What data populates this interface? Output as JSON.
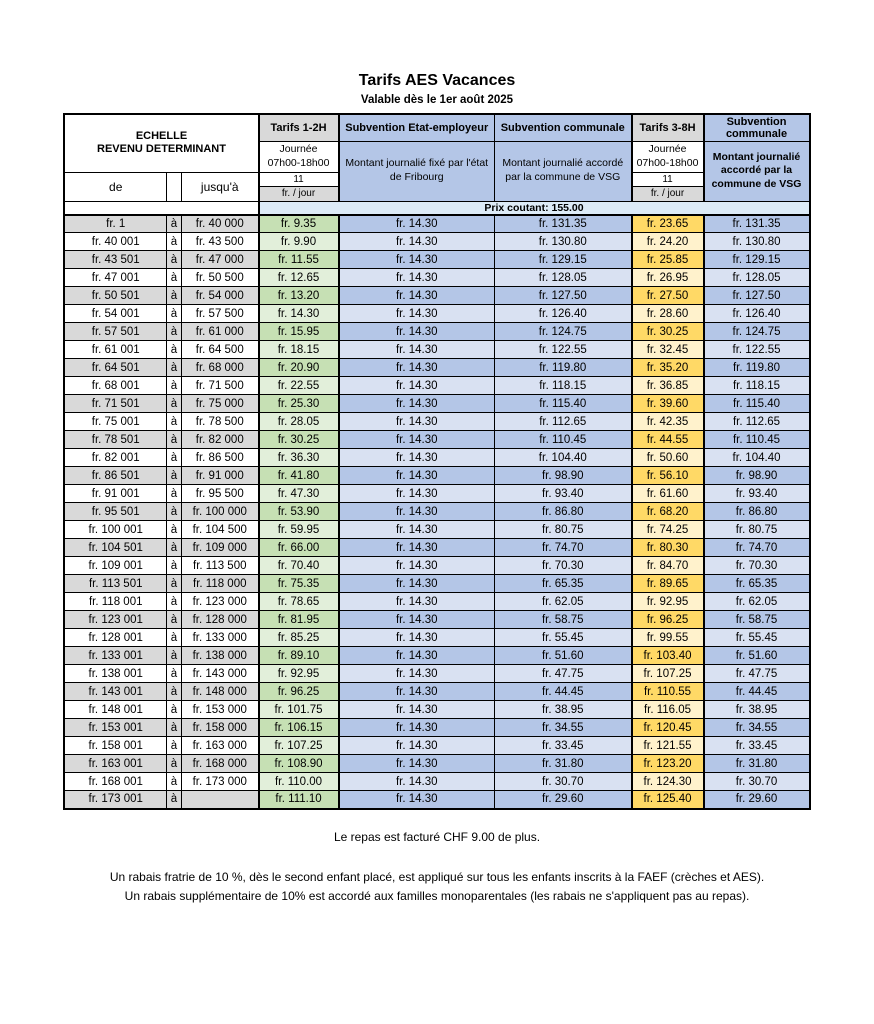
{
  "page": {
    "title": "Tarifs AES Vacances",
    "subtitle": "Valable dès le 1er août 2025"
  },
  "colors": {
    "header_blue": "#b4c6e7",
    "header_gray": "#d9d9d9",
    "prix_band_blue": "#ddebf7",
    "range_odd_gray": "#d9d9d9",
    "range_even_white": "#ffffff",
    "tarif12_odd_green": "#c6e0b4",
    "tarif12_even_green": "#e2efda",
    "subvention_odd_blue": "#b4c6e7",
    "subvention_even_blue": "#d9e1f2",
    "tarif38_odd_yellow": "#ffd966",
    "tarif38_even_yellow": "#fff2cc",
    "border_black": "#000000"
  },
  "table": {
    "header": {
      "echelle_line1": "ECHELLE",
      "echelle_line2": "REVENU DETERMINANT",
      "de": "de",
      "jusqua": "jusqu'à",
      "tarifs_1_2h": {
        "title": "Tarifs 1-2H",
        "journee_line1": "Journée",
        "journee_line2": "07h00-18h00",
        "hours": "11",
        "unit": "fr. / jour"
      },
      "subv_etat": {
        "title": "Subvention Etat-employeur",
        "desc": "Montant journalié fixé par l'état de Fribourg"
      },
      "subv_comm": {
        "title": "Subvention communale",
        "desc": "Montant journalié accordé par la commune de VSG"
      },
      "tarifs_3_8h": {
        "title": "Tarifs 3-8H",
        "journee_line1": "Journée",
        "journee_line2": "07h00-18h00",
        "hours": "11",
        "unit": "fr. / jour"
      },
      "subv_comm2": {
        "title": "Subvention communale",
        "desc": "Montant journalié accordé par la commune de VSG"
      },
      "prix_coutant": "Prix coutant: 155.00"
    },
    "rows": [
      {
        "de": "fr. 1",
        "sep": "à",
        "jusqua": "fr. 40 000",
        "tarif12": "fr. 9.35",
        "subv_etat": "fr. 14.30",
        "subv_comm": "fr. 131.35",
        "tarif38": "fr. 23.65",
        "subv_comm2": "fr. 131.35"
      },
      {
        "de": "fr. 40 001",
        "sep": "à",
        "jusqua": "fr. 43 500",
        "tarif12": "fr. 9.90",
        "subv_etat": "fr. 14.30",
        "subv_comm": "fr. 130.80",
        "tarif38": "fr. 24.20",
        "subv_comm2": "fr. 130.80"
      },
      {
        "de": "fr. 43 501",
        "sep": "à",
        "jusqua": "fr. 47 000",
        "tarif12": "fr. 11.55",
        "subv_etat": "fr. 14.30",
        "subv_comm": "fr. 129.15",
        "tarif38": "fr. 25.85",
        "subv_comm2": "fr. 129.15"
      },
      {
        "de": "fr. 47 001",
        "sep": "à",
        "jusqua": "fr. 50 500",
        "tarif12": "fr. 12.65",
        "subv_etat": "fr. 14.30",
        "subv_comm": "fr. 128.05",
        "tarif38": "fr. 26.95",
        "subv_comm2": "fr. 128.05"
      },
      {
        "de": "fr. 50 501",
        "sep": "à",
        "jusqua": "fr. 54 000",
        "tarif12": "fr. 13.20",
        "subv_etat": "fr. 14.30",
        "subv_comm": "fr. 127.50",
        "tarif38": "fr. 27.50",
        "subv_comm2": "fr. 127.50"
      },
      {
        "de": "fr. 54 001",
        "sep": "à",
        "jusqua": "fr. 57 500",
        "tarif12": "fr. 14.30",
        "subv_etat": "fr. 14.30",
        "subv_comm": "fr. 126.40",
        "tarif38": "fr. 28.60",
        "subv_comm2": "fr. 126.40"
      },
      {
        "de": "fr. 57 501",
        "sep": "à",
        "jusqua": "fr. 61 000",
        "tarif12": "fr. 15.95",
        "subv_etat": "fr. 14.30",
        "subv_comm": "fr. 124.75",
        "tarif38": "fr. 30.25",
        "subv_comm2": "fr. 124.75"
      },
      {
        "de": "fr. 61 001",
        "sep": "à",
        "jusqua": "fr. 64 500",
        "tarif12": "fr. 18.15",
        "subv_etat": "fr. 14.30",
        "subv_comm": "fr. 122.55",
        "tarif38": "fr. 32.45",
        "subv_comm2": "fr. 122.55"
      },
      {
        "de": "fr. 64 501",
        "sep": "à",
        "jusqua": "fr. 68 000",
        "tarif12": "fr. 20.90",
        "subv_etat": "fr. 14.30",
        "subv_comm": "fr. 119.80",
        "tarif38": "fr. 35.20",
        "subv_comm2": "fr. 119.80"
      },
      {
        "de": "fr. 68 001",
        "sep": "à",
        "jusqua": "fr. 71 500",
        "tarif12": "fr. 22.55",
        "subv_etat": "fr. 14.30",
        "subv_comm": "fr. 118.15",
        "tarif38": "fr. 36.85",
        "subv_comm2": "fr. 118.15"
      },
      {
        "de": "fr. 71 501",
        "sep": "à",
        "jusqua": "fr. 75 000",
        "tarif12": "fr. 25.30",
        "subv_etat": "fr. 14.30",
        "subv_comm": "fr. 115.40",
        "tarif38": "fr. 39.60",
        "subv_comm2": "fr. 115.40"
      },
      {
        "de": "fr. 75 001",
        "sep": "à",
        "jusqua": "fr. 78 500",
        "tarif12": "fr. 28.05",
        "subv_etat": "fr. 14.30",
        "subv_comm": "fr. 112.65",
        "tarif38": "fr. 42.35",
        "subv_comm2": "fr. 112.65"
      },
      {
        "de": "fr. 78 501",
        "sep": "à",
        "jusqua": "fr. 82 000",
        "tarif12": "fr. 30.25",
        "subv_etat": "fr. 14.30",
        "subv_comm": "fr. 110.45",
        "tarif38": "fr. 44.55",
        "subv_comm2": "fr. 110.45"
      },
      {
        "de": "fr. 82 001",
        "sep": "à",
        "jusqua": "fr. 86 500",
        "tarif12": "fr. 36.30",
        "subv_etat": "fr. 14.30",
        "subv_comm": "fr. 104.40",
        "tarif38": "fr. 50.60",
        "subv_comm2": "fr. 104.40"
      },
      {
        "de": "fr. 86 501",
        "sep": "à",
        "jusqua": "fr. 91 000",
        "tarif12": "fr. 41.80",
        "subv_etat": "fr. 14.30",
        "subv_comm": "fr. 98.90",
        "tarif38": "fr. 56.10",
        "subv_comm2": "fr. 98.90"
      },
      {
        "de": "fr. 91 001",
        "sep": "à",
        "jusqua": "fr. 95 500",
        "tarif12": "fr. 47.30",
        "subv_etat": "fr. 14.30",
        "subv_comm": "fr. 93.40",
        "tarif38": "fr. 61.60",
        "subv_comm2": "fr. 93.40"
      },
      {
        "de": "fr. 95 501",
        "sep": "à",
        "jusqua": "fr. 100 000",
        "tarif12": "fr. 53.90",
        "subv_etat": "fr. 14.30",
        "subv_comm": "fr. 86.80",
        "tarif38": "fr. 68.20",
        "subv_comm2": "fr. 86.80"
      },
      {
        "de": "fr. 100 001",
        "sep": "à",
        "jusqua": "fr. 104 500",
        "tarif12": "fr. 59.95",
        "subv_etat": "fr. 14.30",
        "subv_comm": "fr. 80.75",
        "tarif38": "fr. 74.25",
        "subv_comm2": "fr. 80.75"
      },
      {
        "de": "fr. 104 501",
        "sep": "à",
        "jusqua": "fr. 109 000",
        "tarif12": "fr. 66.00",
        "subv_etat": "fr. 14.30",
        "subv_comm": "fr. 74.70",
        "tarif38": "fr. 80.30",
        "subv_comm2": "fr. 74.70"
      },
      {
        "de": "fr. 109 001",
        "sep": "à",
        "jusqua": "fr. 113 500",
        "tarif12": "fr. 70.40",
        "subv_etat": "fr. 14.30",
        "subv_comm": "fr. 70.30",
        "tarif38": "fr. 84.70",
        "subv_comm2": "fr. 70.30"
      },
      {
        "de": "fr. 113 501",
        "sep": "à",
        "jusqua": "fr. 118 000",
        "tarif12": "fr. 75.35",
        "subv_etat": "fr. 14.30",
        "subv_comm": "fr. 65.35",
        "tarif38": "fr. 89.65",
        "subv_comm2": "fr. 65.35"
      },
      {
        "de": "fr. 118 001",
        "sep": "à",
        "jusqua": "fr. 123 000",
        "tarif12": "fr. 78.65",
        "subv_etat": "fr. 14.30",
        "subv_comm": "fr. 62.05",
        "tarif38": "fr. 92.95",
        "subv_comm2": "fr. 62.05"
      },
      {
        "de": "fr. 123 001",
        "sep": "à",
        "jusqua": "fr. 128 000",
        "tarif12": "fr. 81.95",
        "subv_etat": "fr. 14.30",
        "subv_comm": "fr. 58.75",
        "tarif38": "fr. 96.25",
        "subv_comm2": "fr. 58.75"
      },
      {
        "de": "fr. 128 001",
        "sep": "à",
        "jusqua": "fr. 133 000",
        "tarif12": "fr. 85.25",
        "subv_etat": "fr. 14.30",
        "subv_comm": "fr. 55.45",
        "tarif38": "fr. 99.55",
        "subv_comm2": "fr. 55.45"
      },
      {
        "de": "fr. 133 001",
        "sep": "à",
        "jusqua": "fr. 138 000",
        "tarif12": "fr. 89.10",
        "subv_etat": "fr. 14.30",
        "subv_comm": "fr. 51.60",
        "tarif38": "fr. 103.40",
        "subv_comm2": "fr. 51.60"
      },
      {
        "de": "fr. 138 001",
        "sep": "à",
        "jusqua": "fr. 143 000",
        "tarif12": "fr. 92.95",
        "subv_etat": "fr. 14.30",
        "subv_comm": "fr. 47.75",
        "tarif38": "fr. 107.25",
        "subv_comm2": "fr. 47.75"
      },
      {
        "de": "fr. 143 001",
        "sep": "à",
        "jusqua": "fr. 148 000",
        "tarif12": "fr. 96.25",
        "subv_etat": "fr. 14.30",
        "subv_comm": "fr. 44.45",
        "tarif38": "fr. 110.55",
        "subv_comm2": "fr. 44.45"
      },
      {
        "de": "fr. 148 001",
        "sep": "à",
        "jusqua": "fr. 153 000",
        "tarif12": "fr. 101.75",
        "subv_etat": "fr. 14.30",
        "subv_comm": "fr. 38.95",
        "tarif38": "fr. 116.05",
        "subv_comm2": "fr. 38.95"
      },
      {
        "de": "fr. 153 001",
        "sep": "à",
        "jusqua": "fr. 158 000",
        "tarif12": "fr. 106.15",
        "subv_etat": "fr. 14.30",
        "subv_comm": "fr. 34.55",
        "tarif38": "fr. 120.45",
        "subv_comm2": "fr. 34.55"
      },
      {
        "de": "fr. 158 001",
        "sep": "à",
        "jusqua": "fr. 163 000",
        "tarif12": "fr. 107.25",
        "subv_etat": "fr. 14.30",
        "subv_comm": "fr. 33.45",
        "tarif38": "fr. 121.55",
        "subv_comm2": "fr. 33.45"
      },
      {
        "de": "fr. 163 001",
        "sep": "à",
        "jusqua": "fr. 168 000",
        "tarif12": "fr. 108.90",
        "subv_etat": "fr. 14.30",
        "subv_comm": "fr. 31.80",
        "tarif38": "fr. 123.20",
        "subv_comm2": "fr. 31.80"
      },
      {
        "de": "fr. 168 001",
        "sep": "à",
        "jusqua": "fr. 173 000",
        "tarif12": "fr. 110.00",
        "subv_etat": "fr. 14.30",
        "subv_comm": "fr. 30.70",
        "tarif38": "fr. 124.30",
        "subv_comm2": "fr. 30.70"
      },
      {
        "de": "fr. 173 001",
        "sep": "à",
        "jusqua": "",
        "tarif12": "fr. 111.10",
        "subv_etat": "fr. 14.30",
        "subv_comm": "fr. 29.60",
        "tarif38": "fr. 125.40",
        "subv_comm2": "fr. 29.60"
      }
    ]
  },
  "footer": {
    "line1": "Le repas est facturé CHF 9.00 de plus.",
    "line2": "Un rabais fratrie de 10 %, dès le second enfant placé, est appliqué sur tous les enfants inscrits à la FAEF (crèches et AES).",
    "line3": "Un rabais supplémentaire de 10% est accordé aux familles monoparentales (les rabais ne s'appliquent pas au repas)."
  }
}
